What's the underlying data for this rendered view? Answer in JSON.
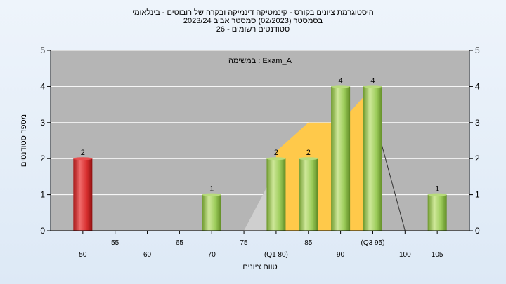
{
  "titles": {
    "line1": "היסטוגרמת ציונים בקורס - קינמטיקה דינמיקה ובקרה של רובוטים - בינלאומי",
    "line2": "בסמסטר  (02/2023)  סמסטר אביב 2023/24",
    "line3": "סטודנטים רשומים - 26"
  },
  "chart_data": {
    "type": "bar",
    "annotation": "במשימה : Exam_A",
    "ylabel": "מספר סטודנטים",
    "xlabel": "טווח ציונים",
    "ylim": [
      0,
      5
    ],
    "xlim": [
      45,
      110
    ],
    "yticks": [
      0,
      1,
      2,
      3,
      4,
      5
    ],
    "xticks_top_row": [
      {
        "x": 55,
        "label": "55"
      },
      {
        "x": 65,
        "label": "65"
      },
      {
        "x": 75,
        "label": "75"
      },
      {
        "x": 85,
        "label": "85"
      },
      {
        "x": 95,
        "label": "(Q3 95)"
      }
    ],
    "xticks_bottom_row": [
      {
        "x": 50,
        "label": "50"
      },
      {
        "x": 60,
        "label": "60"
      },
      {
        "x": 70,
        "label": "70"
      },
      {
        "x": 80,
        "label": "(Q1 80)"
      },
      {
        "x": 90,
        "label": "90"
      },
      {
        "x": 100,
        "label": "100"
      },
      {
        "x": 105,
        "label": "105"
      }
    ],
    "bars": [
      {
        "x": 50,
        "value": 2,
        "color": "red"
      },
      {
        "x": 70,
        "value": 1,
        "color": "green"
      },
      {
        "x": 80,
        "value": 2,
        "color": "green"
      },
      {
        "x": 85,
        "value": 2,
        "color": "green"
      },
      {
        "x": 90,
        "value": 4,
        "color": "green"
      },
      {
        "x": 95,
        "value": 4,
        "color": "green"
      },
      {
        "x": 105,
        "value": 1,
        "color": "green"
      }
    ],
    "distribution_area": {
      "gray": [
        [
          75,
          0
        ],
        [
          80,
          1.7
        ],
        [
          80,
          0
        ]
      ],
      "yellow": [
        [
          80,
          0
        ],
        [
          80,
          2.2
        ],
        [
          85,
          3
        ],
        [
          90,
          3
        ],
        [
          95,
          4
        ],
        [
          95,
          0
        ]
      ],
      "line": [
        [
          95,
          3.3
        ],
        [
          100,
          0
        ]
      ]
    },
    "colors": {
      "plot_bg": "#b5b5b5",
      "grid": "#ffffff",
      "red_bar": "#d93030",
      "green_bar": "#9ccc5a",
      "yellow_area": "#ffc94a",
      "gray_area": "#cfcfcf"
    }
  }
}
